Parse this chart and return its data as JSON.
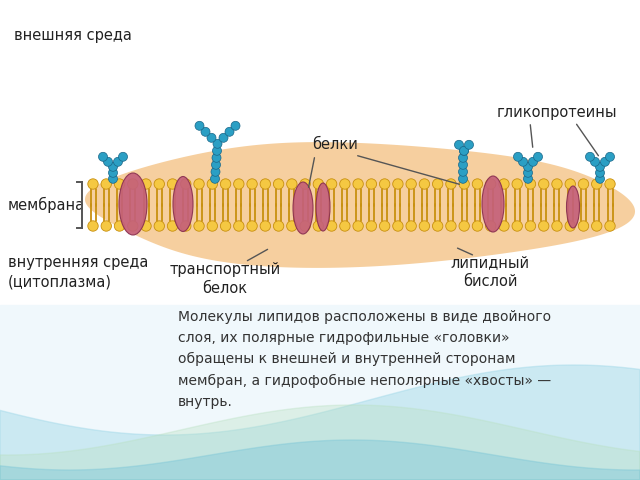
{
  "bg_color": "#ffffff",
  "membrane_fill": "#f5c842",
  "membrane_edge": "#c89010",
  "tail_color": "#c89010",
  "protein_color": "#c4607a",
  "protein_edge": "#8a3050",
  "bead_color": "#2b9fc4",
  "bead_edge": "#1a6688",
  "blob_color": "#f0b060",
  "wave1_color": "#a0d8e8",
  "wave2_color": "#b8e0c0",
  "wave3_color": "#80c8d8",
  "label_color": "#222222",
  "desc_color": "#333333",
  "labels": {
    "external": "внешняя среда",
    "membrane": "мембрана",
    "internal": "внутренняя среда\n(цитоплазма)",
    "transport": "транспортный\nбелок",
    "proteins": "белки",
    "lipid": "липидный\nбислой",
    "glyco": "гликопротеины"
  },
  "description": "Молекулы липидов расположены в виде двойного\nслоя, их полярные гидрофильные «головки»\nобращены к внешней и внутренней сторонам\nмембран, а гидрофобные неполярные «хвосты» —\nвнутрь."
}
